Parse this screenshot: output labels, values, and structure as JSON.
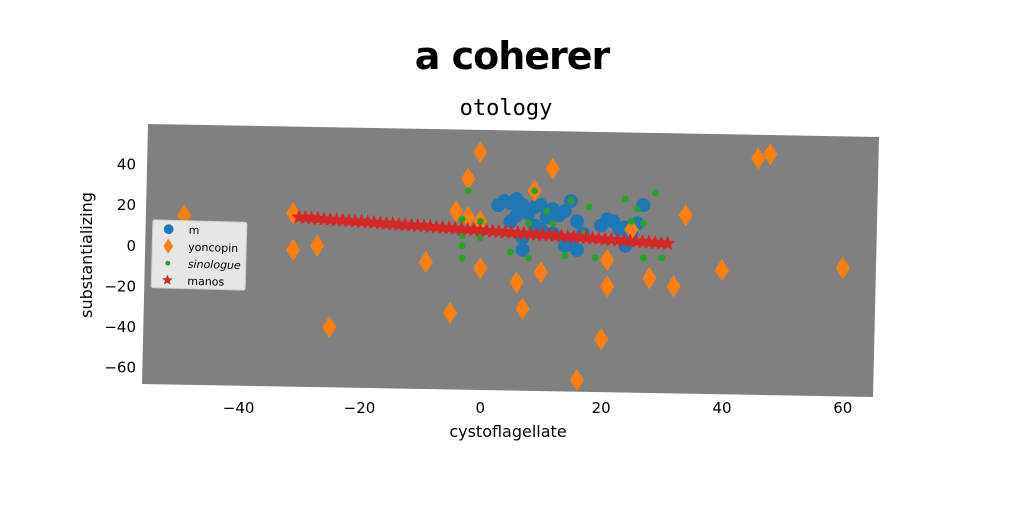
{
  "title": "a coherer",
  "chart_data": {
    "type": "scatter",
    "title": "otology",
    "xlabel": "cystoflagellate",
    "ylabel": "substantializing",
    "xlim": [
      -55,
      65
    ],
    "ylim": [
      -68,
      54
    ],
    "xticks": [
      -40,
      -20,
      0,
      20,
      40,
      60
    ],
    "yticks": [
      40,
      20,
      0,
      -20,
      -40,
      -60
    ],
    "grid": false,
    "legend_position": "left",
    "background": "#808080",
    "series": [
      {
        "name": "m",
        "marker": "circle",
        "color": "#1f77b4",
        "points": [
          [
            4,
            22
          ],
          [
            5,
            21
          ],
          [
            6,
            23
          ],
          [
            7,
            20
          ],
          [
            3,
            20
          ],
          [
            9,
            19
          ],
          [
            10,
            20
          ],
          [
            12,
            18
          ],
          [
            13,
            15
          ],
          [
            15,
            22
          ],
          [
            11,
            14
          ],
          [
            14,
            17
          ],
          [
            6,
            15
          ],
          [
            5,
            12
          ],
          [
            8,
            16
          ],
          [
            16,
            12
          ],
          [
            9,
            10
          ],
          [
            10,
            8
          ],
          [
            12,
            6
          ],
          [
            15,
            3
          ],
          [
            14,
            0
          ],
          [
            17,
            6
          ],
          [
            20,
            10
          ],
          [
            21,
            13
          ],
          [
            22,
            12
          ],
          [
            24,
            9
          ],
          [
            25,
            6
          ],
          [
            26,
            11
          ],
          [
            27,
            20
          ],
          [
            24,
            0
          ],
          [
            7,
            -2
          ],
          [
            7,
            4
          ],
          [
            16,
            -2
          ],
          [
            23,
            8
          ]
        ]
      },
      {
        "name": "yoncopin",
        "marker": "diamond",
        "color": "#ff7f0e",
        "points": [
          [
            -49,
            15
          ],
          [
            -31,
            16
          ],
          [
            -31,
            -2
          ],
          [
            -27,
            0
          ],
          [
            -25,
            -40
          ],
          [
            -9,
            -8
          ],
          [
            -5,
            -33
          ],
          [
            -4,
            17
          ],
          [
            -2,
            14
          ],
          [
            -2,
            33
          ],
          [
            0,
            46
          ],
          [
            0,
            12
          ],
          [
            0,
            -11
          ],
          [
            6,
            -18
          ],
          [
            7,
            -31
          ],
          [
            9,
            27
          ],
          [
            10,
            -13
          ],
          [
            12,
            38
          ],
          [
            16,
            -66
          ],
          [
            20,
            -46
          ],
          [
            21,
            -7
          ],
          [
            21,
            -20
          ],
          [
            25,
            8
          ],
          [
            28,
            -16
          ],
          [
            32,
            -20
          ],
          [
            34,
            15
          ],
          [
            40,
            -12
          ],
          [
            46,
            43
          ],
          [
            48,
            45
          ],
          [
            60,
            -11
          ]
        ]
      },
      {
        "name": "sinologue",
        "marker": "dot",
        "color": "#2ca02c",
        "points": [
          [
            -2,
            27
          ],
          [
            -3,
            13
          ],
          [
            -3,
            5
          ],
          [
            -3,
            0
          ],
          [
            -3,
            -6
          ],
          [
            0,
            12
          ],
          [
            0,
            4
          ],
          [
            5,
            -3
          ],
          [
            5,
            6
          ],
          [
            8,
            11
          ],
          [
            9,
            27
          ],
          [
            11,
            17
          ],
          [
            12,
            11
          ],
          [
            15,
            22
          ],
          [
            17,
            6
          ],
          [
            18,
            19
          ],
          [
            21,
            2
          ],
          [
            24,
            23
          ],
          [
            25,
            12
          ],
          [
            26,
            18
          ],
          [
            27,
            11
          ],
          [
            27,
            -6
          ],
          [
            29,
            26
          ],
          [
            30,
            -6
          ],
          [
            19,
            -6
          ],
          [
            14,
            -5
          ],
          [
            8,
            -6
          ]
        ]
      },
      {
        "name": "manos",
        "marker": "star",
        "color": "#d62728",
        "line": [
          [
            -30,
            14
          ],
          [
            31,
            1
          ]
        ],
        "count": 60
      }
    ]
  }
}
